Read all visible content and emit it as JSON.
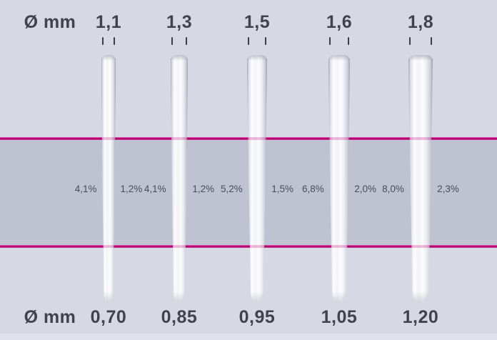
{
  "unit_top": "Ø mm",
  "unit_bottom": "Ø mm",
  "colors": {
    "background": "#d6d8e4",
    "band": "#bfc2d1",
    "reference_line": "#c4007c",
    "text": "#41434c"
  },
  "posts": [
    {
      "top_diameter": "1,1",
      "bottom_diameter": "0,70",
      "taper_left": "4,1%",
      "taper_right": "1,2%"
    },
    {
      "top_diameter": "1,3",
      "bottom_diameter": "0,85",
      "taper_left": "4,1%",
      "taper_right": "1,2%"
    },
    {
      "top_diameter": "1,5",
      "bottom_diameter": "0,95",
      "taper_left": "5,2%",
      "taper_right": "1,5%"
    },
    {
      "top_diameter": "1,6",
      "bottom_diameter": "1,05",
      "taper_left": "6,8%",
      "taper_right": "2,0%"
    },
    {
      "top_diameter": "1,8",
      "bottom_diameter": "1,20",
      "taper_left": "8,0%",
      "taper_right": "2,3%"
    }
  ]
}
